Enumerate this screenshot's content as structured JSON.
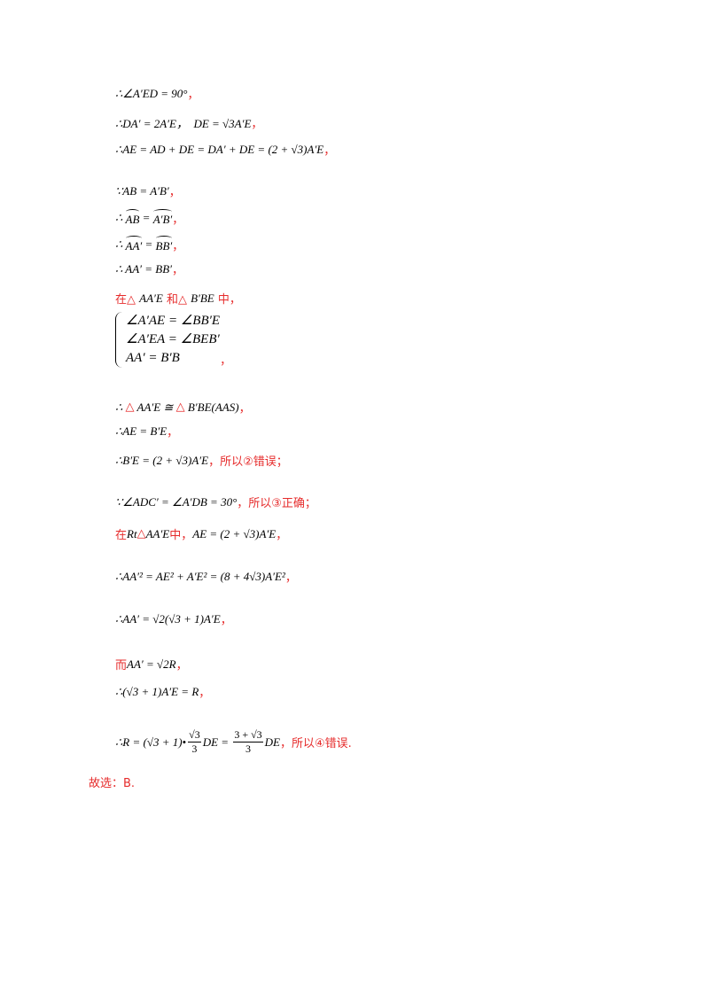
{
  "lines": [
    {
      "parts": [
        {
          "math": "∴∠A′ED = 90°"
        },
        {
          "text": "，"
        }
      ]
    },
    {
      "parts": [
        {
          "math": "∴DA′ = 2A′E，  DE = √3A′E"
        },
        {
          "text": "，"
        }
      ]
    },
    {
      "parts": [
        {
          "math": "∴AE = AD + DE = DA′ + DE = (2 + √3)A′E"
        },
        {
          "text": "，"
        }
      ]
    },
    {
      "parts": [
        {
          "math": "∵AB = A′B′"
        },
        {
          "text": "，"
        }
      ]
    },
    {
      "parts": [
        {
          "math": "∴ "
        },
        {
          "arc": "AB"
        },
        {
          "math": " = "
        },
        {
          "arc": "A′B′"
        },
        {
          "text": "，"
        }
      ]
    },
    {
      "parts": [
        {
          "math": "∴ "
        },
        {
          "arc": "AA′"
        },
        {
          "math": " = "
        },
        {
          "arc": "BB′"
        },
        {
          "text": "，"
        }
      ]
    },
    {
      "parts": [
        {
          "math": "∴ AA′ = BB′"
        },
        {
          "text": "，"
        }
      ]
    },
    {
      "parts": [
        {
          "text": "在△ "
        },
        {
          "math": "AA′E"
        },
        {
          "text": " 和△ "
        },
        {
          "math": "B′BE"
        },
        {
          "text": " 中，"
        }
      ]
    },
    {
      "system": [
        "∠A′AE = ∠BB′E",
        "∠A′EA = ∠BEB′",
        "AA′ = B′B"
      ],
      "parts": [
        {
          "text": "，"
        }
      ]
    },
    {
      "parts": [
        {
          "math": "∴ "
        },
        {
          "text": "△"
        },
        {
          "math": " AA′E ≅ "
        },
        {
          "text": "△"
        },
        {
          "math": " B′BE(AAS)"
        },
        {
          "text": "，"
        }
      ]
    },
    {
      "parts": [
        {
          "math": "∴AE = B′E"
        },
        {
          "text": "，"
        }
      ]
    },
    {
      "parts": [
        {
          "math": "∴B′E = (2 + √3)A′E"
        },
        {
          "text": "，所以②错误；"
        }
      ]
    },
    {
      "parts": [
        {
          "math": "∵∠ADC′ = ∠A′DB = 30°"
        },
        {
          "text": "，所以③正确；"
        }
      ]
    },
    {
      "parts": [
        {
          "text": "在"
        },
        {
          "math": "Rt"
        },
        {
          "text": "△"
        },
        {
          "math": "AA′E"
        },
        {
          "text": "中，"
        },
        {
          "math": "AE = (2 + √3)A′E"
        },
        {
          "text": "，"
        }
      ]
    },
    {
      "parts": [
        {
          "math": "∴AA′² = AE² + A′E² = (8 + 4√3)A′E²"
        },
        {
          "text": "，"
        }
      ]
    },
    {
      "parts": [
        {
          "math": "∴AA′ = √2(√3 + 1)A′E"
        },
        {
          "text": "，"
        }
      ]
    },
    {
      "parts": [
        {
          "text": "而"
        },
        {
          "math": "AA′ = √2R"
        },
        {
          "text": "，"
        }
      ]
    },
    {
      "parts": [
        {
          "math": "∴(√3 + 1)A′E = R"
        },
        {
          "text": "，"
        }
      ]
    },
    {
      "parts": [
        {
          "math": "∴R = (√3 + 1)•"
        },
        {
          "frac": [
            "√3",
            "3"
          ]
        },
        {
          "math": "DE = "
        },
        {
          "frac": [
            "3 + √3",
            "3"
          ]
        },
        {
          "math": "DE"
        },
        {
          "text": "，所以④错误."
        }
      ]
    },
    {
      "parts": [
        {
          "text": "故选：B."
        }
      ]
    }
  ]
}
